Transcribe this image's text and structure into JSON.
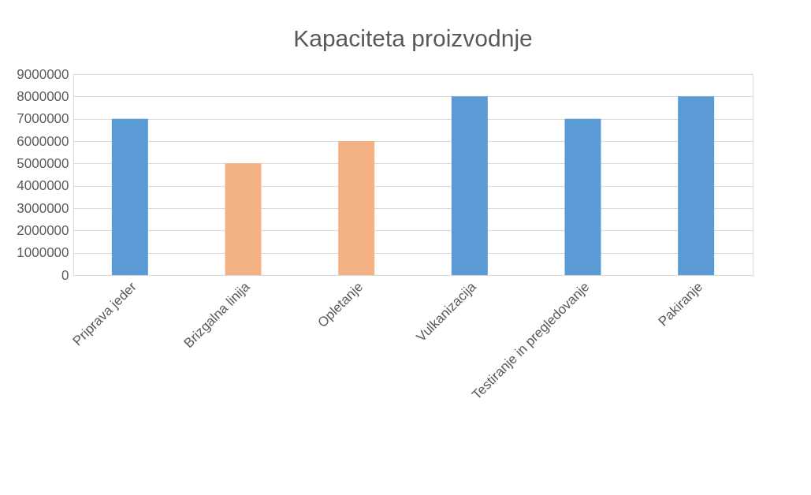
{
  "chart_data": {
    "type": "bar",
    "title": "Kapaciteta proizvodnje",
    "categories": [
      "Priprava jeder",
      "Brizgalna linija",
      "Opletanje",
      "Vulkanizacija",
      "Testiranje in pregledovanje",
      "Pakiranje"
    ],
    "values": [
      7000000,
      5000000,
      6000000,
      8000000,
      7000000,
      8000000
    ],
    "colors": [
      "#5b9bd5",
      "#f4b183",
      "#f4b183",
      "#5b9bd5",
      "#5b9bd5",
      "#5b9bd5"
    ],
    "ylim": [
      0,
      9000000
    ],
    "yticks": [
      0,
      1000000,
      2000000,
      3000000,
      4000000,
      5000000,
      6000000,
      7000000,
      8000000,
      9000000
    ],
    "grid": "y",
    "legend": false
  }
}
